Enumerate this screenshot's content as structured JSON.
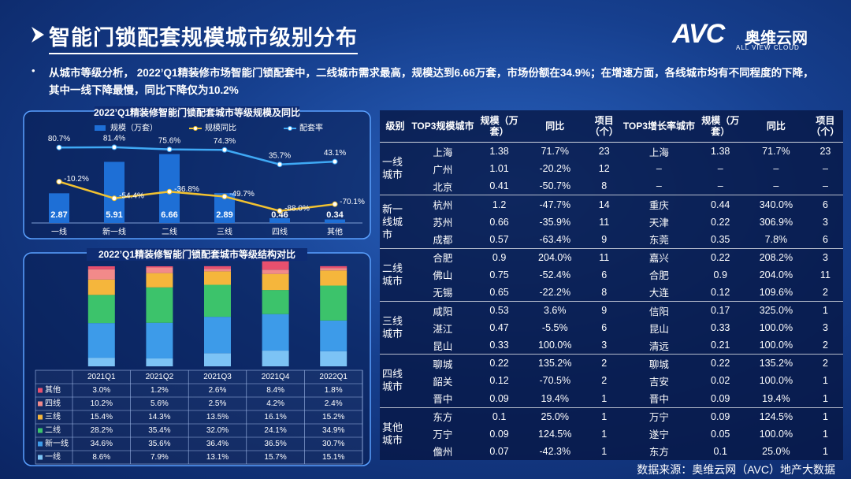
{
  "header": {
    "title": "智能门锁配套规模城市级别分布",
    "logo": "AVC",
    "brand": "奥维云网",
    "brand_en": "ALL VIEW CLOUD"
  },
  "summary": "从城市等级分析， 2022’Q1精装修市场智能门锁配套中，二线城市需求最高，规模达到6.66万套，市场份额在34.9%；在增速方面，各线城市均有不同程度的下降，其中一线下降最慢，同比下降仅为10.2%",
  "chart_data": [
    {
      "type": "combo",
      "title": "2022’Q1精装修智能门锁配套城市等级规模及同比",
      "categories": [
        "一线",
        "新一线",
        "二线",
        "三线",
        "四线",
        "其他"
      ],
      "series": [
        {
          "name": "规模（万套）",
          "type": "bar",
          "color": "#1e6fd6",
          "values": [
            2.87,
            5.91,
            6.66,
            2.89,
            0.46,
            0.34
          ]
        },
        {
          "name": "规模同比",
          "type": "line",
          "axis": "y2",
          "color": "#f2c230",
          "values": [
            -10.2,
            -54.4,
            -36.8,
            -49.7,
            -88.0,
            -70.1
          ],
          "value_labels": [
            "-10.2%",
            "-54.4%",
            "-36.8%",
            "-49.7%",
            "-88.0%",
            "-70.1%"
          ]
        },
        {
          "name": "配套率",
          "type": "line",
          "axis": "y2",
          "color": "#3fa9f5",
          "values": [
            80.7,
            81.4,
            75.6,
            74.3,
            35.7,
            43.1
          ],
          "value_labels": [
            "80.7%",
            "81.4%",
            "75.6%",
            "74.3%",
            "35.7%",
            "43.1%"
          ]
        }
      ],
      "ylim": [
        0,
        8
      ],
      "y2lim": [
        -120,
        100
      ],
      "legend": "top"
    },
    {
      "type": "stacked_bar",
      "title": "2022’Q1精装修智能门锁配套城市等级结构对比",
      "categories": [
        "2021Q1",
        "2021Q2",
        "2021Q3",
        "2021Q4",
        "2022Q1"
      ],
      "series": [
        {
          "name": "一线",
          "color": "#7cc3f5",
          "values": [
            8.6,
            7.9,
            13.1,
            15.7,
            15.1
          ],
          "value_labels": [
            "8.6%",
            "7.9%",
            "13.1%",
            "15.7%",
            "15.1%"
          ]
        },
        {
          "name": "新一线",
          "color": "#3d9be9",
          "values": [
            34.6,
            35.6,
            36.4,
            36.5,
            30.7
          ],
          "value_labels": [
            "34.6%",
            "35.6%",
            "36.4%",
            "36.5%",
            "30.7%"
          ]
        },
        {
          "name": "二线",
          "color": "#3cc36b",
          "values": [
            28.2,
            35.4,
            32.0,
            24.1,
            34.9
          ],
          "value_labels": [
            "28.2%",
            "35.4%",
            "32.0%",
            "24.1%",
            "34.9%"
          ]
        },
        {
          "name": "三线",
          "color": "#f5b63c",
          "values": [
            15.4,
            14.3,
            13.5,
            16.1,
            15.2
          ],
          "value_labels": [
            "15.4%",
            "14.3%",
            "13.5%",
            "16.1%",
            "15.2%"
          ]
        },
        {
          "name": "四线",
          "color": "#f28a8a",
          "values": [
            10.2,
            5.6,
            2.5,
            4.2,
            2.4
          ],
          "value_labels": [
            "10.2%",
            "5.6%",
            "2.5%",
            "4.2%",
            "2.4%"
          ]
        },
        {
          "name": "其他",
          "color": "#e8506e",
          "values": [
            3.0,
            1.2,
            2.6,
            8.4,
            1.8
          ],
          "value_labels": [
            "3.0%",
            "1.2%",
            "2.6%",
            "8.4%",
            "1.8%"
          ]
        }
      ],
      "ylim": [
        0,
        100
      ]
    }
  ],
  "table": {
    "header": [
      "级别",
      "TOP3规模城市",
      "规模（万套）",
      "同比",
      "项目（个）",
      "TOP3增长率城市",
      "规模（万套）",
      "同比",
      "项目（个）"
    ],
    "groups": [
      {
        "level": "一线城市",
        "rows": [
          [
            "上海",
            "1.38",
            "71.7%",
            "23",
            "上海",
            "1.38",
            "71.7%",
            "23"
          ],
          [
            "广州",
            "1.01",
            "-20.2%",
            "12",
            "–",
            "–",
            "–",
            "–"
          ],
          [
            "北京",
            "0.41",
            "-50.7%",
            "8",
            "–",
            "–",
            "–",
            "–"
          ]
        ]
      },
      {
        "level": "新一线城市",
        "rows": [
          [
            "杭州",
            "1.2",
            "-47.7%",
            "14",
            "重庆",
            "0.44",
            "340.0%",
            "6"
          ],
          [
            "苏州",
            "0.66",
            "-35.9%",
            "11",
            "天津",
            "0.22",
            "306.9%",
            "3"
          ],
          [
            "成都",
            "0.57",
            "-63.4%",
            "9",
            "东莞",
            "0.35",
            "7.8%",
            "6"
          ]
        ]
      },
      {
        "level": "二线城市",
        "rows": [
          [
            "合肥",
            "0.9",
            "204.0%",
            "11",
            "嘉兴",
            "0.22",
            "208.2%",
            "3"
          ],
          [
            "佛山",
            "0.75",
            "-52.4%",
            "6",
            "合肥",
            "0.9",
            "204.0%",
            "11"
          ],
          [
            "无锡",
            "0.65",
            "-22.2%",
            "8",
            "大连",
            "0.12",
            "109.6%",
            "2"
          ]
        ]
      },
      {
        "level": "三线城市",
        "rows": [
          [
            "咸阳",
            "0.53",
            "3.6%",
            "9",
            "信阳",
            "0.17",
            "325.0%",
            "1"
          ],
          [
            "湛江",
            "0.47",
            "-5.5%",
            "6",
            "昆山",
            "0.33",
            "100.0%",
            "3"
          ],
          [
            "昆山",
            "0.33",
            "100.0%",
            "3",
            "清远",
            "0.21",
            "100.0%",
            "2"
          ]
        ]
      },
      {
        "level": "四线城市",
        "rows": [
          [
            "聊城",
            "0.22",
            "135.2%",
            "2",
            "聊城",
            "0.22",
            "135.2%",
            "2"
          ],
          [
            "韶关",
            "0.12",
            "-70.5%",
            "2",
            "吉安",
            "0.02",
            "100.0%",
            "1"
          ],
          [
            "晋中",
            "0.09",
            "19.4%",
            "1",
            "晋中",
            "0.09",
            "19.4%",
            "1"
          ]
        ]
      },
      {
        "level": "其他城市",
        "rows": [
          [
            "东方",
            "0.1",
            "25.0%",
            "1",
            "万宁",
            "0.09",
            "124.5%",
            "1"
          ],
          [
            "万宁",
            "0.09",
            "124.5%",
            "1",
            "遂宁",
            "0.05",
            "100.0%",
            "1"
          ],
          [
            "儋州",
            "0.07",
            "-42.3%",
            "1",
            "东方",
            "0.1",
            "25.0%",
            "1"
          ]
        ]
      }
    ]
  },
  "source": "数据来源：奥维云网（AVC）地产大数据"
}
